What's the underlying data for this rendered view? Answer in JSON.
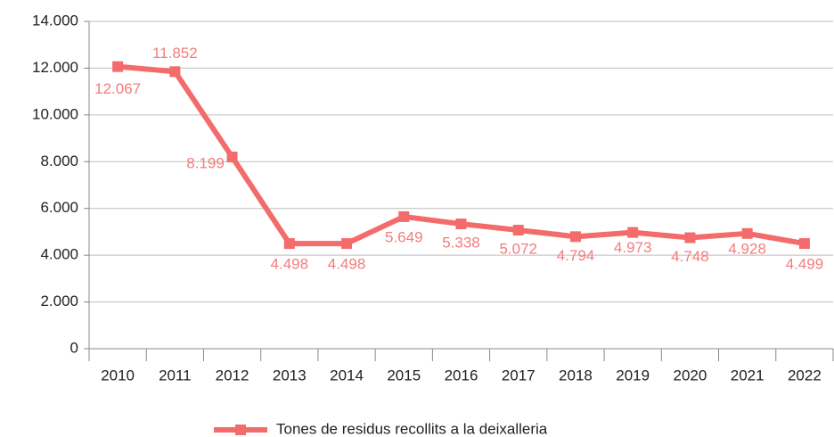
{
  "chart_data": {
    "type": "line",
    "categories": [
      "2010",
      "2011",
      "2012",
      "2013",
      "2014",
      "2015",
      "2016",
      "2017",
      "2018",
      "2019",
      "2020",
      "2021",
      "2022"
    ],
    "series": [
      {
        "name": "Tones de residus recollits a la deixalleria",
        "color": "#f46b6b",
        "values": [
          12067,
          11852,
          8199,
          4498,
          4498,
          5649,
          5338,
          5072,
          4794,
          4973,
          4748,
          4928,
          4499
        ],
        "value_labels": [
          "12.067",
          "11.852",
          "8.199",
          "4.498",
          "4.498",
          "5.649",
          "5.338",
          "5.072",
          "4.794",
          "4.973",
          "4.748",
          "4.928",
          "4.499"
        ]
      }
    ],
    "ylim": [
      0,
      14000
    ],
    "yticks": [
      0,
      {
        "value": 2000,
        "label": "2.000"
      },
      {
        "value": 4000,
        "label": "4.000"
      },
      {
        "value": 6000,
        "label": "6.000"
      },
      {
        "value": 8000,
        "label": "8.000"
      },
      {
        "value": 10000,
        "label": "10.000"
      },
      {
        "value": 12000,
        "label": "12.000"
      },
      {
        "value": 14000,
        "label": "14.000"
      }
    ],
    "grid": true,
    "legend": "bottom"
  }
}
